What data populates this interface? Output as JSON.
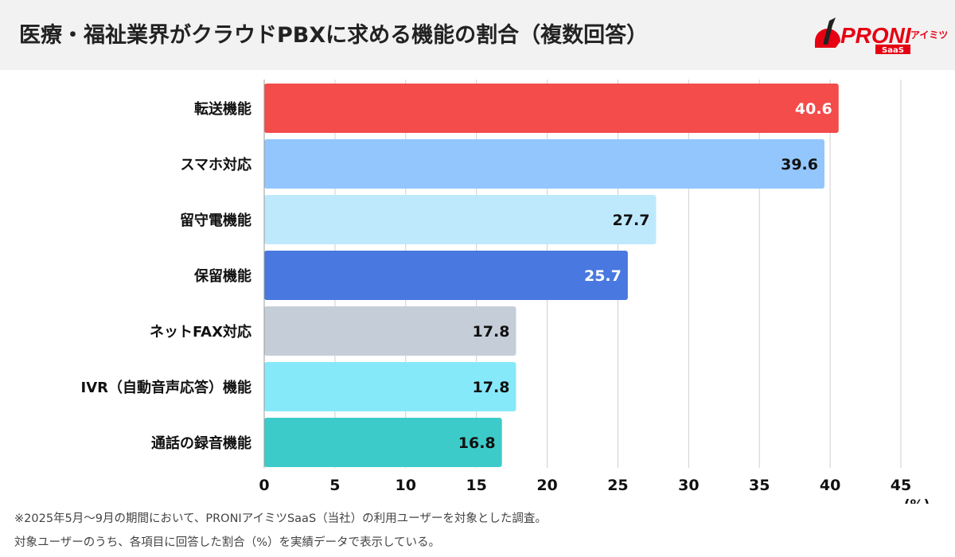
{
  "header": {
    "title": "医療・福祉業界がクラウドPBXに求める機能の割合（複数回答）",
    "logo_text": "PRONIアイミツ SaaS"
  },
  "chart_data": {
    "type": "bar",
    "orientation": "horizontal",
    "title": "",
    "categories": [
      "転送機能",
      "スマホ対応",
      "留守電機能",
      "保留機能",
      "ネットFAX対応",
      "IVR（自動音声応答）機能",
      "通話の録音機能"
    ],
    "values": [
      40.6,
      39.6,
      27.7,
      25.7,
      17.8,
      17.8,
      16.8
    ],
    "colors": [
      "#f44b4b",
      "#93c6fd",
      "#bee9fd",
      "#4878e0",
      "#c5ced8",
      "#86e9f9",
      "#3dcbc9"
    ],
    "label_colors": [
      "#ffffff",
      "#111111",
      "#111111",
      "#ffffff",
      "#111111",
      "#111111",
      "#111111"
    ],
    "xlim": [
      0,
      45
    ],
    "xticks": [
      0,
      5,
      10,
      15,
      20,
      25,
      30,
      35,
      40,
      45
    ],
    "xlabel": "(%)",
    "grid": true,
    "data_labels": [
      "40.6",
      "39.6",
      "27.7",
      "25.7",
      "17.8",
      "17.8",
      "16.8"
    ]
  },
  "footnotes": [
    "※2025年5月〜9月の期間において、PRONIアイミツSaaS（当社）の利用ユーザーを対象とした調査。",
    "対象ユーザーのうち、各項目に回答した割合（%）を実績データで表示している。"
  ]
}
